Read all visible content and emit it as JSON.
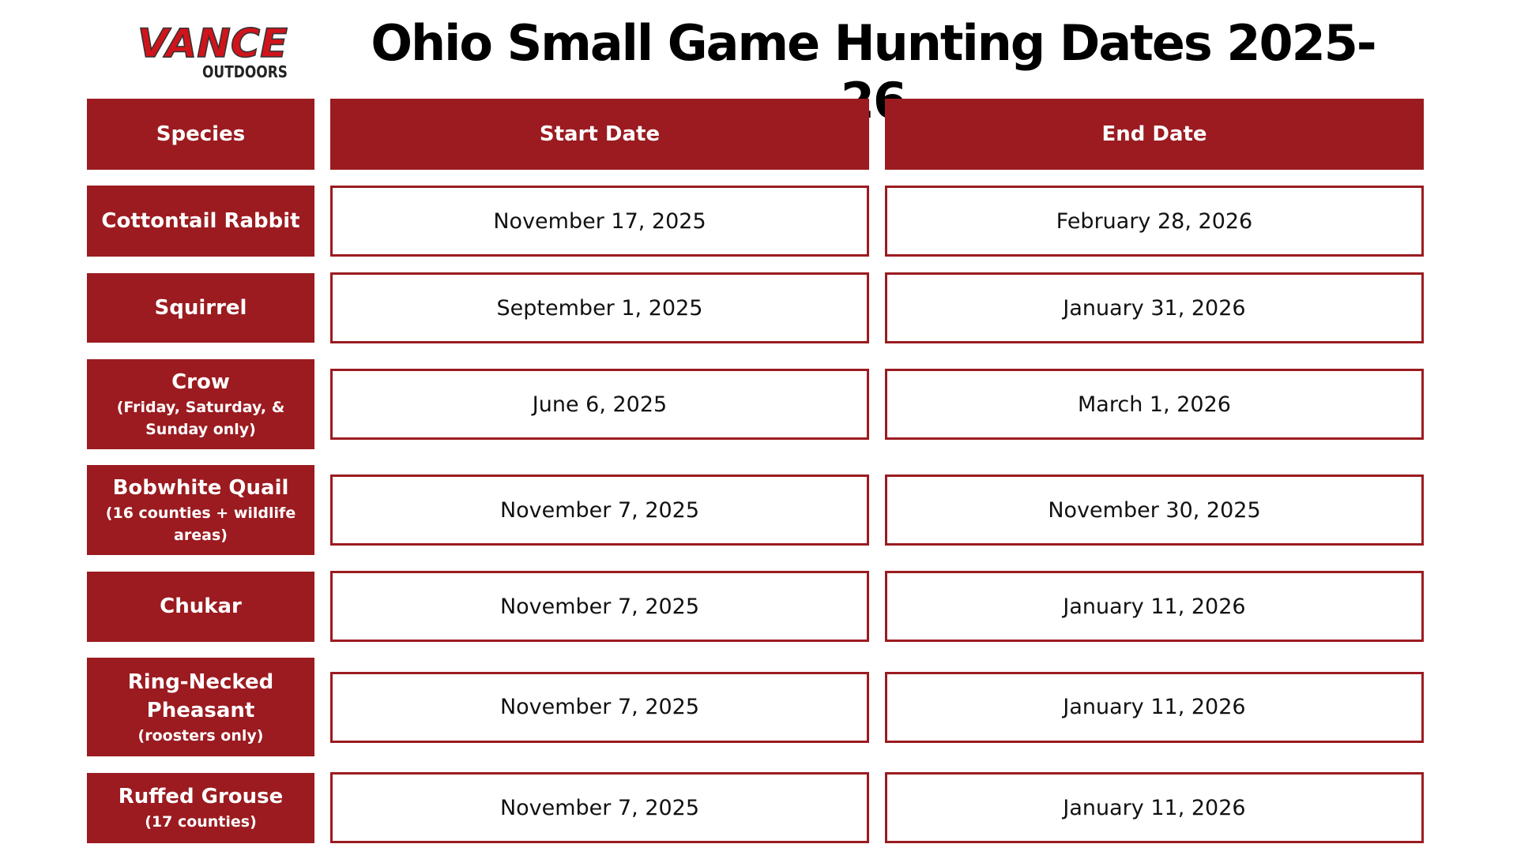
{
  "logo": {
    "text": "VANCE",
    "subtext": "OUTDOORS"
  },
  "title": "Ohio Small Game Hunting Dates 2025-26",
  "colors": {
    "accent": "#9b1b20"
  },
  "headers": [
    "Species",
    "Start Date",
    "End Date"
  ],
  "rows": [
    {
      "species": "Cottontail Rabbit",
      "note": "",
      "start": "November 17, 2025",
      "end": "February 28, 2026"
    },
    {
      "species": "Squirrel",
      "note": "",
      "start": "September 1, 2025",
      "end": "January 31, 2026"
    },
    {
      "species": "Crow",
      "note": "(Friday, Saturday, & Sunday only)",
      "start": "June 6, 2025",
      "end": "March 1, 2026"
    },
    {
      "species": "Bobwhite Quail",
      "note": "(16 counties + wildlife areas)",
      "start": "November 7, 2025",
      "end": "November 30, 2025"
    },
    {
      "species": "Chukar",
      "note": "",
      "start": "November 7, 2025",
      "end": "January 11, 2026"
    },
    {
      "species": "Ring-Necked Pheasant",
      "note": "(roosters only)",
      "start": "November 7, 2025",
      "end": "January 11, 2026"
    },
    {
      "species": "Ruffed Grouse",
      "note": "(17 counties)",
      "start": "November 7, 2025",
      "end": "January 11, 2026"
    }
  ]
}
